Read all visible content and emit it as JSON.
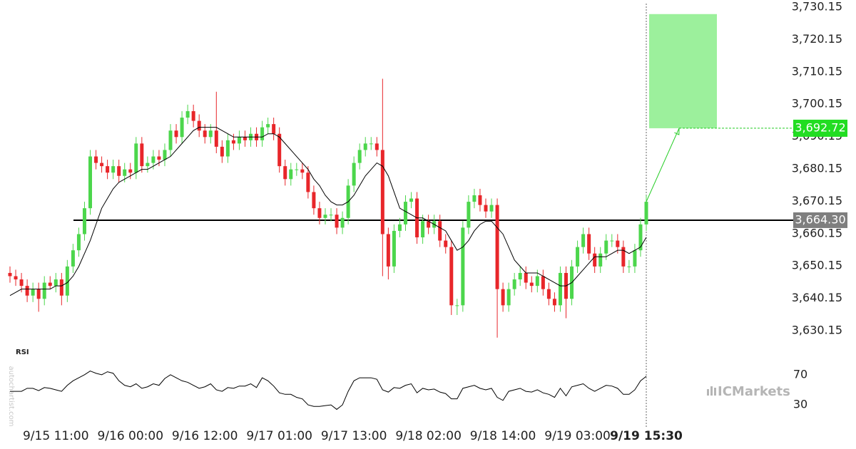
{
  "chart_data": {
    "type": "candlestick",
    "categories": [
      null,
      null,
      null,
      null,
      null,
      null,
      null,
      null,
      "9/15 11:00",
      null,
      null,
      null,
      null,
      null,
      null,
      null,
      null,
      null,
      null,
      null,
      null,
      "9/16 00:00",
      null,
      null,
      null,
      null,
      null,
      null,
      null,
      null,
      null,
      null,
      null,
      null,
      "9/16 12:00",
      null,
      null,
      null,
      null,
      null,
      null,
      null,
      null,
      null,
      null,
      null,
      null,
      "9/17 01:00",
      null,
      null,
      null,
      null,
      null,
      null,
      null,
      null,
      null,
      null,
      null,
      null,
      "9/17 13:00",
      null,
      null,
      null,
      null,
      null,
      null,
      null,
      null,
      null,
      null,
      null,
      null,
      "9/18 02:00",
      null,
      null,
      null,
      null,
      null,
      null,
      null,
      null,
      null,
      null,
      null,
      null,
      "9/18 14:00",
      null,
      null,
      null,
      null,
      null,
      null,
      null,
      null,
      null,
      null,
      null,
      null,
      "9/19 03:00",
      null,
      null,
      null,
      null,
      null,
      null,
      null,
      null,
      null,
      null,
      null,
      "9/19 15:30"
    ],
    "open": [
      3648,
      3647,
      3646,
      3644,
      3641,
      3643,
      3640,
      3645,
      3644,
      3646,
      3641,
      3650,
      3655,
      3660,
      3668,
      3684,
      3682,
      3681,
      3679,
      3681,
      3678,
      3680,
      3679,
      3688,
      3681,
      3682,
      3684,
      3683,
      3686,
      3692,
      3690,
      3696,
      3698,
      3695,
      3692,
      3690,
      3692,
      3687,
      3684,
      3689,
      3688,
      3690,
      3689,
      3691,
      3689,
      3693,
      3694,
      3691,
      3681,
      3677,
      3680,
      3680,
      3679,
      3673,
      3668,
      3665,
      3666,
      3666,
      3662,
      3665,
      3675,
      3682,
      3686,
      3688,
      3688,
      3686,
      3660,
      3650,
      3661,
      3663,
      3670,
      3671,
      3659,
      3664,
      3662,
      3664,
      3658,
      3656,
      3638,
      3638,
      3662,
      3670,
      3672,
      3669,
      3667,
      3669,
      3643,
      3638,
      3643,
      3646,
      3648,
      3645,
      3644,
      3647,
      3643,
      3640,
      3638,
      3648,
      3640,
      3650,
      3656,
      3660,
      3654,
      3650,
      3654,
      3658,
      3658,
      3656,
      3650,
      3650,
      3655,
      3663
    ],
    "high": [
      3650,
      3649,
      3648,
      3646,
      3645,
      3645,
      3647,
      3647,
      3648,
      3648,
      3652,
      3657,
      3662,
      3670,
      3686,
      3686,
      3684,
      3683,
      3683,
      3683,
      3682,
      3682,
      3690,
      3690,
      3684,
      3686,
      3686,
      3688,
      3694,
      3694,
      3698,
      3700,
      3700,
      3697,
      3694,
      3694,
      3704,
      3689,
      3691,
      3691,
      3692,
      3692,
      3693,
      3693,
      3695,
      3696,
      3696,
      3693,
      3683,
      3682,
      3682,
      3682,
      3681,
      3675,
      3670,
      3668,
      3668,
      3668,
      3667,
      3677,
      3684,
      3688,
      3690,
      3690,
      3690,
      3708,
      3662,
      3663,
      3665,
      3672,
      3673,
      3673,
      3666,
      3666,
      3666,
      3666,
      3660,
      3658,
      3640,
      3664,
      3672,
      3674,
      3674,
      3671,
      3671,
      3671,
      3645,
      3645,
      3648,
      3650,
      3650,
      3647,
      3649,
      3649,
      3645,
      3642,
      3650,
      3650,
      3652,
      3658,
      3662,
      3662,
      3656,
      3656,
      3660,
      3660,
      3660,
      3658,
      3652,
      3657,
      3665,
      3672
    ],
    "low": [
      3645,
      3644,
      3642,
      3639,
      3639,
      3636,
      3638,
      3643,
      3642,
      3638,
      3639,
      3648,
      3653,
      3658,
      3666,
      3680,
      3679,
      3677,
      3677,
      3676,
      3676,
      3677,
      3677,
      3679,
      3679,
      3680,
      3681,
      3681,
      3684,
      3688,
      3688,
      3694,
      3693,
      3690,
      3688,
      3688,
      3685,
      3682,
      3682,
      3686,
      3686,
      3687,
      3687,
      3687,
      3687,
      3691,
      3689,
      3679,
      3675,
      3675,
      3678,
      3677,
      3671,
      3666,
      3663,
      3663,
      3664,
      3660,
      3660,
      3663,
      3673,
      3680,
      3684,
      3686,
      3684,
      3647,
      3646,
      3648,
      3659,
      3661,
      3668,
      3657,
      3657,
      3660,
      3660,
      3656,
      3654,
      3635,
      3635,
      3636,
      3660,
      3668,
      3667,
      3665,
      3665,
      3628,
      3636,
      3636,
      3641,
      3644,
      3643,
      3642,
      3642,
      3641,
      3638,
      3636,
      3636,
      3634,
      3638,
      3648,
      3654,
      3652,
      3648,
      3648,
      3652,
      3656,
      3654,
      3648,
      3648,
      3648,
      3653,
      3661
    ],
    "close": [
      3647,
      3646,
      3644,
      3641,
      3643,
      3640,
      3645,
      3644,
      3646,
      3641,
      3650,
      3655,
      3660,
      3668,
      3684,
      3682,
      3681,
      3679,
      3681,
      3678,
      3680,
      3679,
      3688,
      3681,
      3682,
      3684,
      3683,
      3686,
      3692,
      3690,
      3696,
      3698,
      3695,
      3692,
      3690,
      3692,
      3687,
      3684,
      3689,
      3688,
      3690,
      3689,
      3691,
      3689,
      3693,
      3694,
      3691,
      3681,
      3677,
      3680,
      3680,
      3679,
      3673,
      3668,
      3665,
      3666,
      3666,
      3662,
      3665,
      3675,
      3682,
      3686,
      3688,
      3688,
      3686,
      3660,
      3650,
      3661,
      3663,
      3670,
      3671,
      3659,
      3664,
      3662,
      3664,
      3658,
      3656,
      3638,
      3638,
      3662,
      3670,
      3672,
      3669,
      3667,
      3669,
      3643,
      3638,
      3643,
      3646,
      3648,
      3645,
      3644,
      3647,
      3643,
      3640,
      3638,
      3648,
      3640,
      3650,
      3656,
      3660,
      3654,
      3650,
      3654,
      3658,
      3658,
      3656,
      3650,
      3650,
      3655,
      3663,
      3670
    ],
    "up_color": "#4cd64c",
    "down_color": "#e8262a",
    "moving_average": {
      "color": "#000000",
      "values": [
        3641,
        3642,
        3643,
        3643,
        3643,
        3643,
        3643,
        3643,
        3644,
        3644,
        3645,
        3647,
        3650,
        3654,
        3658,
        3663,
        3668,
        3671,
        3674,
        3676,
        3677,
        3678,
        3679,
        3680,
        3680,
        3681,
        3682,
        3683,
        3684,
        3686,
        3688,
        3690,
        3692,
        3693,
        3693,
        3693,
        3693,
        3692,
        3691,
        3690,
        3690,
        3690,
        3690,
        3690,
        3690,
        3691,
        3691,
        3690,
        3688,
        3686,
        3684,
        3682,
        3680,
        3677,
        3675,
        3672,
        3670,
        3669,
        3669,
        3670,
        3672,
        3675,
        3678,
        3680,
        3682,
        3681,
        3678,
        3673,
        3668,
        3667,
        3666,
        3665,
        3665,
        3664,
        3663,
        3662,
        3661,
        3658,
        3655,
        3656,
        3658,
        3661,
        3663,
        3664,
        3664,
        3662,
        3660,
        3656,
        3652,
        3650,
        3648,
        3648,
        3648,
        3647,
        3646,
        3645,
        3644,
        3644,
        3645,
        3647,
        3649,
        3651,
        3653,
        3653,
        3653,
        3654,
        3655,
        3655,
        3654,
        3655,
        3656,
        3659
      ]
    },
    "ylim": [
      3630.15,
      3730.15
    ],
    "yticks": [
      {
        "value": 3630.15,
        "label": "3,630.15"
      },
      {
        "value": 3640.15,
        "label": "3,640.15"
      },
      {
        "value": 3650.15,
        "label": "3,650.15"
      },
      {
        "value": 3660.15,
        "label": "3,660.15"
      },
      {
        "value": 3670.15,
        "label": "3,670.15"
      },
      {
        "value": 3680.15,
        "label": "3,680.15"
      },
      {
        "value": 3690.15,
        "label": "3,690.15"
      },
      {
        "value": 3700.15,
        "label": "3,700.15"
      },
      {
        "value": 3710.15,
        "label": "3,710.15"
      },
      {
        "value": 3720.15,
        "label": "3,720.15"
      },
      {
        "value": 3730.15,
        "label": "3,730.15"
      }
    ],
    "support_level": {
      "value": 3664.3,
      "label": "3,664.30",
      "color": "#000000"
    },
    "forecast": {
      "value": 3692.72,
      "label": "3,692.72",
      "zone_high": 3728,
      "color": "#9cf09c"
    },
    "rsi": {
      "label": "RSI",
      "color": "#000000",
      "values": [
        48,
        48,
        48,
        52,
        52,
        49,
        53,
        52,
        50,
        48,
        56,
        62,
        66,
        70,
        75,
        72,
        70,
        74,
        72,
        62,
        56,
        54,
        58,
        52,
        54,
        58,
        56,
        65,
        70,
        66,
        62,
        60,
        56,
        52,
        54,
        58,
        50,
        48,
        53,
        52,
        55,
        55,
        58,
        53,
        66,
        62,
        55,
        46,
        44,
        44,
        40,
        38,
        30,
        28,
        28,
        29,
        30,
        24,
        30,
        48,
        62,
        66,
        66,
        66,
        64,
        50,
        47,
        53,
        52,
        56,
        58,
        46,
        52,
        50,
        51,
        47,
        45,
        38,
        38,
        52,
        54,
        56,
        52,
        50,
        52,
        40,
        36,
        48,
        50,
        52,
        48,
        47,
        50,
        46,
        44,
        40,
        52,
        42,
        54,
        56,
        58,
        52,
        48,
        52,
        56,
        55,
        52,
        44,
        44,
        50,
        62,
        68
      ],
      "ylim": [
        14,
        85
      ],
      "yticks": [
        30,
        70
      ]
    },
    "watermark": "autochartist.com",
    "logo": "ICMarkets"
  }
}
